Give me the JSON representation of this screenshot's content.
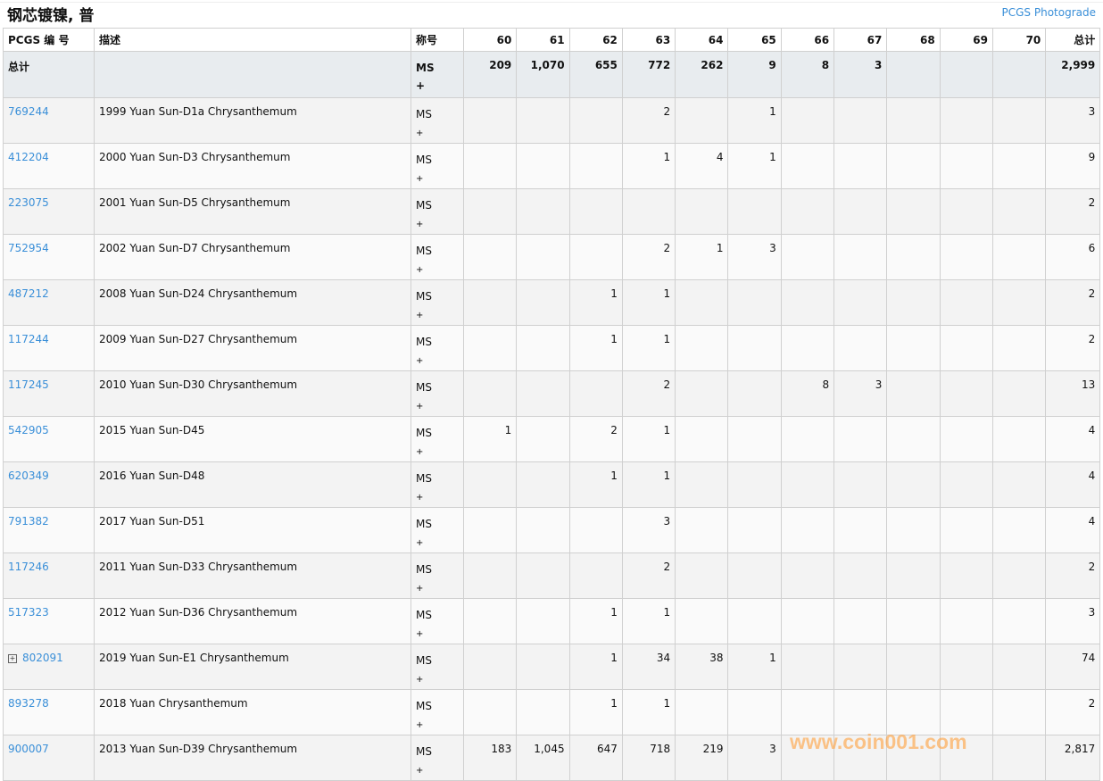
{
  "title": "钢芯镀镍, 普",
  "photograde_link": "PCGS Photograde",
  "headers": {
    "pcgs": "PCGS 编 号",
    "desc": "描述",
    "designation": "称号",
    "grades": [
      "60",
      "61",
      "62",
      "63",
      "64",
      "65",
      "66",
      "67",
      "68",
      "69",
      "70"
    ],
    "total": "总计"
  },
  "total_row": {
    "label": "总计",
    "designation": "MS",
    "designation_plus": "+",
    "values": [
      "209",
      "1,070",
      "655",
      "772",
      "262",
      "9",
      "8",
      "3",
      "",
      "",
      ""
    ],
    "total": "2,999"
  },
  "rows": [
    {
      "pcgs": "769244",
      "desc": "1999 Yuan Sun-D1a Chrysanthemum",
      "values": [
        "",
        "",
        "",
        "2",
        "",
        "1",
        "",
        "",
        "",
        "",
        ""
      ],
      "total": "3"
    },
    {
      "pcgs": "412204",
      "desc": "2000 Yuan Sun-D3 Chrysanthemum",
      "values": [
        "",
        "",
        "",
        "1",
        "4",
        "1",
        "",
        "",
        "",
        "",
        ""
      ],
      "total": "9"
    },
    {
      "pcgs": "223075",
      "desc": "2001 Yuan Sun-D5 Chrysanthemum",
      "values": [
        "",
        "",
        "",
        "",
        "",
        "",
        "",
        "",
        "",
        "",
        ""
      ],
      "total": "2"
    },
    {
      "pcgs": "752954",
      "desc": "2002 Yuan Sun-D7 Chrysanthemum",
      "values": [
        "",
        "",
        "",
        "2",
        "1",
        "3",
        "",
        "",
        "",
        "",
        ""
      ],
      "total": "6"
    },
    {
      "pcgs": "487212",
      "desc": "2008 Yuan Sun-D24 Chrysanthemum",
      "values": [
        "",
        "",
        "1",
        "1",
        "",
        "",
        "",
        "",
        "",
        "",
        ""
      ],
      "total": "2"
    },
    {
      "pcgs": "117244",
      "desc": "2009 Yuan Sun-D27 Chrysanthemum",
      "values": [
        "",
        "",
        "1",
        "1",
        "",
        "",
        "",
        "",
        "",
        "",
        ""
      ],
      "total": "2"
    },
    {
      "pcgs": "117245",
      "desc": "2010 Yuan Sun-D30 Chrysanthemum",
      "values": [
        "",
        "",
        "",
        "2",
        "",
        "",
        "8",
        "3",
        "",
        "",
        ""
      ],
      "total": "13"
    },
    {
      "pcgs": "542905",
      "desc": "2015 Yuan Sun-D45",
      "values": [
        "1",
        "",
        "2",
        "1",
        "",
        "",
        "",
        "",
        "",
        "",
        ""
      ],
      "total": "4"
    },
    {
      "pcgs": "620349",
      "desc": "2016 Yuan Sun-D48",
      "values": [
        "",
        "",
        "1",
        "1",
        "",
        "",
        "",
        "",
        "",
        "",
        ""
      ],
      "total": "4"
    },
    {
      "pcgs": "791382",
      "desc": "2017 Yuan Sun-D51",
      "values": [
        "",
        "",
        "",
        "3",
        "",
        "",
        "",
        "",
        "",
        "",
        ""
      ],
      "total": "4"
    },
    {
      "pcgs": "117246",
      "desc": "2011 Yuan Sun-D33 Chrysanthemum",
      "values": [
        "",
        "",
        "",
        "2",
        "",
        "",
        "",
        "",
        "",
        "",
        ""
      ],
      "total": "2"
    },
    {
      "pcgs": "517323",
      "desc": "2012 Yuan Sun-D36 Chrysanthemum",
      "values": [
        "",
        "",
        "1",
        "1",
        "",
        "",
        "",
        "",
        "",
        "",
        ""
      ],
      "total": "3"
    },
    {
      "pcgs": "802091",
      "expand": true,
      "desc": "2019 Yuan Sun-E1 Chrysanthemum",
      "values": [
        "",
        "",
        "1",
        "34",
        "38",
        "1",
        "",
        "",
        "",
        "",
        ""
      ],
      "total": "74"
    },
    {
      "pcgs": "893278",
      "desc": "2018 Yuan Chrysanthemum",
      "values": [
        "",
        "",
        "1",
        "1",
        "",
        "",
        "",
        "",
        "",
        "",
        ""
      ],
      "total": "2"
    },
    {
      "pcgs": "900007",
      "desc": "2013 Yuan Sun-D39 Chrysanthemum",
      "values": [
        "183",
        "1,045",
        "647",
        "718",
        "219",
        "3",
        "",
        "",
        "",
        "",
        ""
      ],
      "total": "2,817"
    }
  ],
  "row_designation": "MS",
  "row_designation_plus": "+",
  "watermark": "www.coin001.com"
}
